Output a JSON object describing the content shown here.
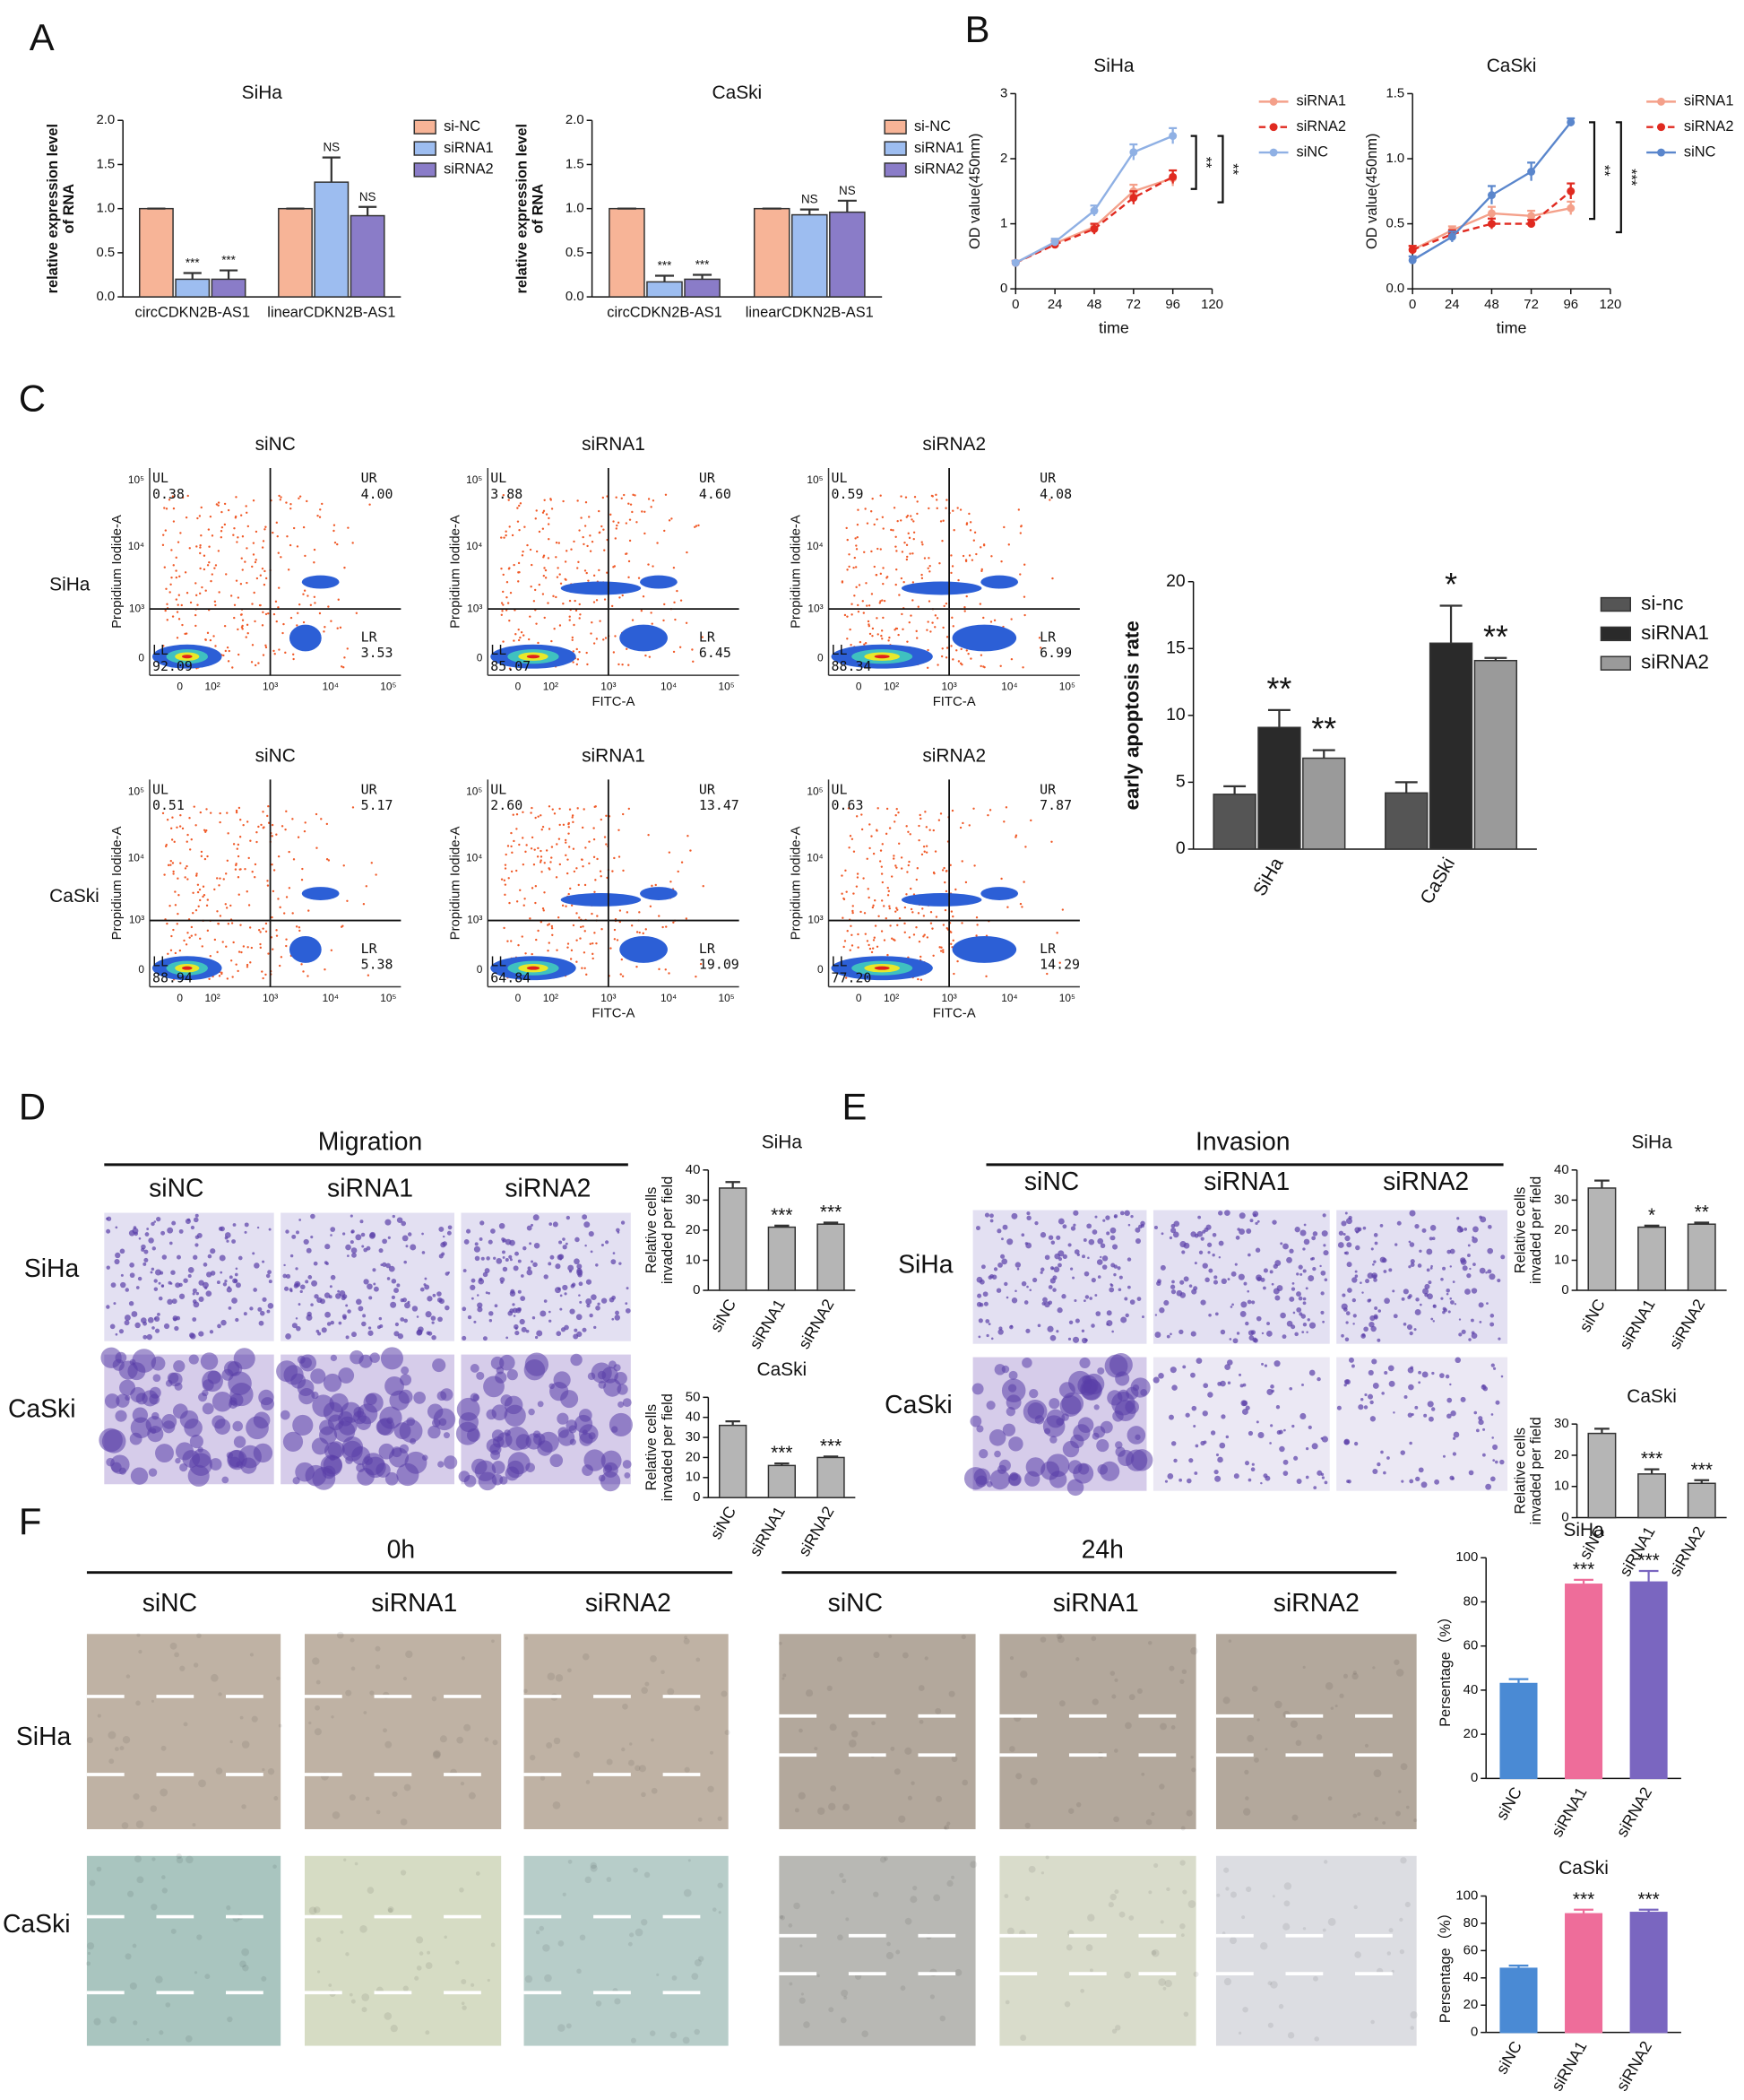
{
  "panel_labels": [
    "A",
    "B",
    "C",
    "D",
    "E",
    "F"
  ],
  "chart_data": [
    {
      "type": "bar",
      "title": "SiHa",
      "ylabel": [
        "relative expression level",
        "of RNA"
      ],
      "categories": [
        "circCDKN2B-AS1",
        "linearCDKN2B-AS1"
      ],
      "ylim": [
        0,
        2
      ],
      "yticks": [
        {
          "value": 0,
          "label": "0.0"
        },
        {
          "value": 0.5,
          "label": "0.5"
        },
        {
          "value": 1,
          "label": "1.0"
        },
        {
          "value": 1.5,
          "label": "1.5"
        },
        {
          "value": 2,
          "label": "2.0"
        }
      ],
      "legend": true,
      "series": [
        {
          "name": "si-NC",
          "color": "#f7b497",
          "values": [
            1,
            1
          ],
          "errors": [
            0,
            0
          ]
        },
        {
          "name": "siRNA1",
          "color": "#9dbdf0",
          "values": [
            0.2,
            1.3
          ],
          "errors": [
            0.07,
            0.28
          ],
          "annotations": [
            "***",
            "NS"
          ]
        },
        {
          "name": "siRNA2",
          "color": "#8a7cc8",
          "values": [
            0.2,
            0.92
          ],
          "errors": [
            0.1,
            0.1
          ],
          "annotations": [
            "***",
            "NS"
          ]
        }
      ]
    },
    {
      "type": "bar",
      "title": "CaSki",
      "ylabel": [
        "relative expression level",
        "of RNA"
      ],
      "categories": [
        "circCDKN2B-AS1",
        "linearCDKN2B-AS1"
      ],
      "ylim": [
        0,
        2
      ],
      "yticks": [
        {
          "value": 0,
          "label": "0.0"
        },
        {
          "value": 0.5,
          "label": "0.5"
        },
        {
          "value": 1,
          "label": "1.0"
        },
        {
          "value": 1.5,
          "label": "1.5"
        },
        {
          "value": 2,
          "label": "2.0"
        }
      ],
      "legend": true,
      "series": [
        {
          "name": "si-NC",
          "color": "#f7b497",
          "values": [
            1,
            1
          ],
          "errors": [
            0,
            0
          ]
        },
        {
          "name": "siRNA1",
          "color": "#9dbdf0",
          "values": [
            0.17,
            0.93
          ],
          "errors": [
            0.07,
            0.06
          ],
          "annotations": [
            "***",
            "NS"
          ]
        },
        {
          "name": "siRNA2",
          "color": "#8a7cc8",
          "values": [
            0.2,
            0.96
          ],
          "errors": [
            0.05,
            0.13
          ],
          "annotations": [
            "***",
            "NS"
          ]
        }
      ]
    },
    {
      "type": "line",
      "title": "SiHa",
      "xlabel": "time",
      "ylabel": [
        "OD value(450nm)"
      ],
      "x": [
        0,
        24,
        48,
        72,
        96
      ],
      "xlim": [
        0,
        120
      ],
      "xticks": [
        0,
        24,
        48,
        72,
        96,
        120
      ],
      "ylim": [
        0,
        3
      ],
      "yticks": [
        0,
        1,
        2,
        3
      ],
      "legend": true,
      "annotations": [
        "**",
        "**"
      ],
      "series": [
        {
          "name": "siRNA1",
          "color": "#f4a08a",
          "values": [
            0.4,
            0.7,
            0.95,
            1.5,
            1.7
          ],
          "errors": [
            0.03,
            0.05,
            0.05,
            0.1,
            0.12
          ]
        },
        {
          "name": "siRNA2",
          "color": "#e02a20",
          "dashed": true,
          "values": [
            0.4,
            0.68,
            0.92,
            1.4,
            1.72
          ],
          "errors": [
            0.03,
            0.05,
            0.08,
            0.1,
            0.1
          ]
        },
        {
          "name": "siNC",
          "color": "#8fb0e4",
          "values": [
            0.4,
            0.72,
            1.2,
            2.1,
            2.35
          ],
          "errors": [
            0.03,
            0.05,
            0.08,
            0.12,
            0.12
          ]
        }
      ]
    },
    {
      "type": "line",
      "title": "CaSki",
      "xlabel": "time",
      "ylabel": [
        "OD value(450nm)"
      ],
      "x": [
        0,
        24,
        48,
        72,
        96
      ],
      "xlim": [
        0,
        120
      ],
      "xticks": [
        0,
        24,
        48,
        72,
        96,
        120
      ],
      "ylim": [
        0,
        1.5
      ],
      "yticks": [
        {
          "value": 0,
          "label": "0.0"
        },
        {
          "value": 0.5,
          "label": "0.5"
        },
        {
          "value": 1,
          "label": "1.0"
        },
        {
          "value": 1.5,
          "label": "1.5"
        }
      ],
      "legend": true,
      "annotations": [
        "**",
        "***"
      ],
      "series": [
        {
          "name": "siRNA1",
          "color": "#f4a08a",
          "values": [
            0.3,
            0.45,
            0.58,
            0.56,
            0.62
          ],
          "errors": [
            0.03,
            0.03,
            0.05,
            0.04,
            0.05
          ]
        },
        {
          "name": "siRNA2",
          "color": "#e02a20",
          "dashed": true,
          "values": [
            0.3,
            0.42,
            0.5,
            0.5,
            0.75
          ],
          "errors": [
            0.03,
            0.03,
            0.04,
            0.03,
            0.06
          ]
        },
        {
          "name": "siNC",
          "color": "#5a86cc",
          "values": [
            0.22,
            0.4,
            0.72,
            0.9,
            1.28
          ],
          "errors": [
            0.03,
            0.04,
            0.07,
            0.07,
            0.03
          ]
        }
      ]
    },
    {
      "type": "bar",
      "ylabel": [
        "early apoptosis rate"
      ],
      "categories": [
        "SiHa",
        "CaSki"
      ],
      "ylim": [
        0,
        20
      ],
      "yticks": [
        0,
        5,
        10,
        15,
        20
      ],
      "legend": true,
      "series": [
        {
          "name": "si-nc",
          "color": "#555555",
          "values": [
            4.1,
            4.2
          ],
          "errors": [
            0.6,
            0.8
          ]
        },
        {
          "name": "siRNA1",
          "color": "#2a2a2a",
          "values": [
            9.1,
            15.4
          ],
          "errors": [
            1.3,
            2.8
          ],
          "annotations": [
            "**",
            "*"
          ]
        },
        {
          "name": "siRNA2",
          "color": "#9a9a9a",
          "values": [
            6.8,
            14.1
          ],
          "errors": [
            0.6,
            0.2
          ],
          "annotations": [
            "**",
            "**"
          ]
        }
      ]
    },
    {
      "type": "bar",
      "title": "SiHa",
      "ylabel": [
        "Relative cells",
        "invaded per field"
      ],
      "categories": [
        "siNC",
        "siRNA1",
        "siRNA2"
      ],
      "ylim": [
        0,
        40
      ],
      "yticks": [
        0,
        10,
        20,
        30,
        40
      ],
      "series": [
        {
          "color": "#b5b5b5",
          "values": [
            34,
            21,
            22
          ],
          "errors": [
            2,
            0.5,
            0.5
          ],
          "annotations": [
            null,
            "***",
            "***"
          ]
        }
      ]
    },
    {
      "type": "bar",
      "title": "CaSki",
      "ylabel": [
        "Relative cells",
        "invaded per field"
      ],
      "categories": [
        "siNC",
        "siRNA1",
        "siRNA2"
      ],
      "ylim": [
        0,
        50
      ],
      "yticks": [
        0,
        10,
        20,
        30,
        40,
        50
      ],
      "series": [
        {
          "color": "#b5b5b5",
          "values": [
            36,
            16,
            20
          ],
          "errors": [
            2,
            1,
            0.5
          ],
          "annotations": [
            null,
            "***",
            "***"
          ]
        }
      ]
    },
    {
      "type": "bar",
      "title": "SiHa",
      "ylabel": [
        "Relative cells",
        "invaded per field"
      ],
      "categories": [
        "siNC",
        "siRNA1",
        "siRNA2"
      ],
      "ylim": [
        0,
        40
      ],
      "yticks": [
        0,
        10,
        20,
        30,
        40
      ],
      "series": [
        {
          "color": "#b5b5b5",
          "values": [
            34,
            21,
            22
          ],
          "errors": [
            2.5,
            0.5,
            0.5
          ],
          "annotations": [
            null,
            "*",
            "**"
          ]
        }
      ]
    },
    {
      "type": "bar",
      "title": "CaSki",
      "ylabel": [
        "Relative cells",
        "invaded per field"
      ],
      "categories": [
        "siNC",
        "siRNA1",
        "siRNA2"
      ],
      "ylim": [
        0,
        30
      ],
      "yticks": [
        0,
        10,
        20,
        30
      ],
      "series": [
        {
          "color": "#b5b5b5",
          "values": [
            27,
            14,
            11
          ],
          "errors": [
            1.5,
            1.5,
            1
          ],
          "annotations": [
            null,
            "***",
            "***"
          ]
        }
      ]
    },
    {
      "type": "bar",
      "title": "SiHa",
      "ylabel": [
        "Persentage（%）"
      ],
      "categories": [
        "siNC",
        "siRNA1",
        "siRNA2"
      ],
      "ylim": [
        0,
        100
      ],
      "yticks": [
        0,
        20,
        40,
        60,
        80,
        100
      ],
      "series": [
        {
          "colors": [
            "#4a8ad4",
            "#ee6d9a",
            "#7a66c0"
          ],
          "values": [
            43,
            88,
            89
          ],
          "errors": [
            2,
            2,
            5
          ],
          "annotations": [
            null,
            "***",
            "***"
          ]
        }
      ]
    },
    {
      "type": "bar",
      "title": "CaSki",
      "ylabel": [
        "Persentage（%）"
      ],
      "categories": [
        "siNC",
        "siRNA1",
        "siRNA2"
      ],
      "ylim": [
        0,
        100
      ],
      "yticks": [
        0,
        20,
        40,
        60,
        80,
        100
      ],
      "series": [
        {
          "colors": [
            "#4a8ad4",
            "#ee6d9a",
            "#7a66c0"
          ],
          "values": [
            47,
            87,
            88
          ],
          "errors": [
            2,
            3,
            2
          ],
          "annotations": [
            null,
            "***",
            "***"
          ]
        }
      ]
    }
  ],
  "flow_cytometry": {
    "rows": [
      "SiHa",
      "CaSki"
    ],
    "y_label": "Propidium Iodide-A",
    "x_ticks": [
      "0",
      "10²",
      "10³",
      "10⁴",
      "10⁵"
    ],
    "y_ticks": [
      "0",
      "10³",
      "10⁴",
      "10⁵"
    ],
    "plots": [
      {
        "title": "siNC",
        "quadrants": [
          {
            "name": "UL",
            "value": "0.38"
          },
          {
            "name": "UR",
            "value": "4.00"
          },
          {
            "name": "LL",
            "value": "92.09"
          },
          {
            "name": "LR",
            "value": "3.53"
          }
        ]
      },
      {
        "title": "siRNA1",
        "x_label": "FITC-A",
        "quadrants": [
          {
            "name": "UL",
            "value": "3.88"
          },
          {
            "name": "UR",
            "value": "4.60"
          },
          {
            "name": "LL",
            "value": "85.07"
          },
          {
            "name": "LR",
            "value": "6.45"
          }
        ]
      },
      {
        "title": "siRNA2",
        "x_label": "FITC-A",
        "quadrants": [
          {
            "name": "UL",
            "value": "0.59"
          },
          {
            "name": "UR",
            "value": "4.08"
          },
          {
            "name": "LL",
            "value": "88.34"
          },
          {
            "name": "LR",
            "value": "6.99"
          }
        ]
      },
      {
        "title": "siNC",
        "quadrants": [
          {
            "name": "UL",
            "value": "0.51"
          },
          {
            "name": "UR",
            "value": "5.17"
          },
          {
            "name": "LL",
            "value": "88.94"
          },
          {
            "name": "LR",
            "value": "5.38"
          }
        ]
      },
      {
        "title": "siRNA1",
        "x_label": "FITC-A",
        "quadrants": [
          {
            "name": "UL",
            "value": "2.60"
          },
          {
            "name": "UR",
            "value": "13.47"
          },
          {
            "name": "LL",
            "value": "64.84"
          },
          {
            "name": "LR",
            "value": "19.09"
          }
        ]
      },
      {
        "title": "siRNA2",
        "x_label": "FITC-A",
        "quadrants": [
          {
            "name": "UL",
            "value": "0.63"
          },
          {
            "name": "UR",
            "value": "7.87"
          },
          {
            "name": "LL",
            "value": "77.20"
          },
          {
            "name": "LR",
            "value": "14.29"
          }
        ]
      }
    ]
  },
  "image_grids": [
    {
      "headers": [
        "Migration"
      ],
      "columns": [
        "siNC",
        "siRNA1",
        "siRNA2"
      ],
      "rows": [
        "SiHa",
        "CaSki"
      ]
    },
    {
      "headers": [
        "Invasion"
      ],
      "columns": [
        "siNC",
        "siRNA1",
        "siRNA2"
      ],
      "rows": [
        "SiHa",
        "CaSki"
      ]
    },
    {
      "headers": [
        "0h",
        "24h"
      ],
      "columns": [
        "siNC",
        "siRNA1",
        "siRNA2",
        "siNC",
        "siRNA1",
        "siRNA2"
      ],
      "rows": [
        "SiHa",
        "CaSki"
      ]
    }
  ]
}
